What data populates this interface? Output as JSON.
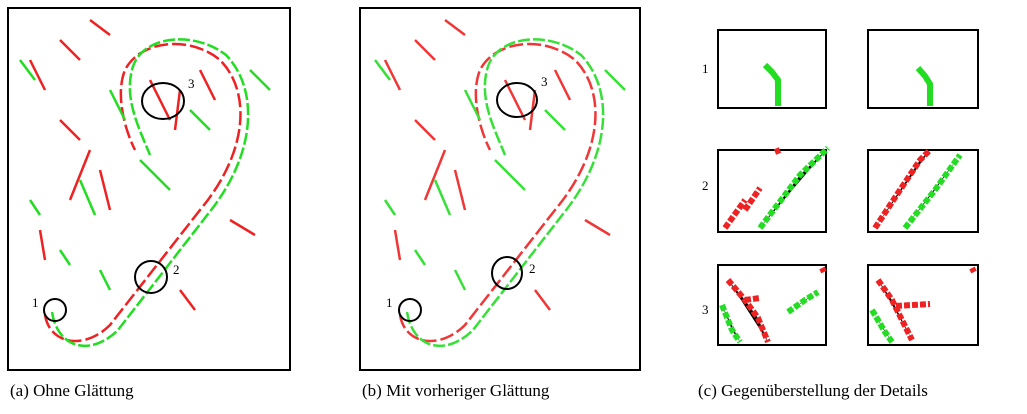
{
  "figure": {
    "panels": [
      {
        "caption": "(a) Ohne Glättung",
        "markers": [
          "1",
          "2",
          "3"
        ]
      },
      {
        "caption": "(b) Mit vorheriger Glättung",
        "markers": [
          "1",
          "2",
          "3"
        ]
      },
      {
        "caption": "(c) Gegenüberstellung der Details",
        "rows": [
          "1",
          "2",
          "3"
        ]
      }
    ]
  }
}
